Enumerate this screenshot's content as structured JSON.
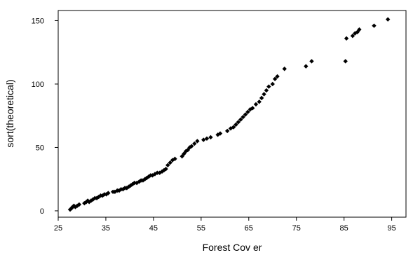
{
  "chart_data": {
    "type": "scatter",
    "title": "",
    "xlabel": "Forest Cov er",
    "ylabel": "sort(theoretical)",
    "xlim": [
      25,
      98
    ],
    "ylim": [
      -5,
      158
    ],
    "xticks": [
      25,
      35,
      45,
      55,
      65,
      75,
      85,
      95
    ],
    "yticks": [
      0,
      50,
      100,
      150
    ],
    "grid": false,
    "marker": "diamond",
    "color": "#000000",
    "series": [
      {
        "x": [
          27.5,
          27.8,
          28.0,
          28.3,
          28.6,
          29.0,
          29.4,
          30.5,
          30.9,
          31.2,
          31.5,
          31.9,
          32.3,
          32.7,
          33.1,
          33.5,
          33.9,
          34.3,
          34.7,
          35.1,
          35.5,
          36.5,
          36.9,
          37.4,
          37.8,
          38.2,
          38.6,
          39.0,
          39.4,
          39.8,
          40.2,
          40.6,
          41.0,
          41.5,
          42.0,
          42.4,
          42.8,
          43.2,
          43.6,
          44.0,
          44.4,
          44.8,
          45.3,
          45.8,
          46.3,
          46.8,
          47.2,
          47.6,
          48.0,
          48.5,
          49.0,
          49.5,
          51.0,
          51.4,
          51.8,
          52.2,
          52.6,
          53.0,
          53.6,
          54.2,
          55.5,
          56.2,
          57.0,
          58.5,
          59.0,
          60.5,
          61.2,
          61.8,
          62.3,
          62.8,
          63.3,
          63.8,
          64.3,
          64.8,
          65.3,
          65.8,
          66.5,
          67.2,
          67.7,
          68.2,
          68.7,
          69.2,
          70.0,
          70.5,
          71.0,
          72.5,
          77.0,
          78.2,
          85.3,
          85.5,
          86.8,
          87.3,
          87.8,
          88.2,
          91.3,
          94.2
        ],
        "y": [
          1,
          2,
          3,
          4,
          3,
          4,
          5,
          6,
          7,
          8,
          7,
          8,
          9,
          10,
          10,
          11,
          12,
          12,
          13,
          13,
          14,
          15,
          15,
          16,
          16,
          17,
          17,
          18,
          18,
          19,
          20,
          21,
          22,
          22,
          23,
          24,
          24,
          25,
          26,
          27,
          28,
          28,
          29,
          30,
          30,
          31,
          32,
          33,
          36,
          38,
          40,
          41,
          43,
          45,
          47,
          48,
          50,
          51,
          53,
          55,
          56,
          57,
          58,
          60,
          61,
          63,
          65,
          66,
          68,
          70,
          72,
          74,
          76,
          78,
          80,
          81,
          84,
          86,
          89,
          92,
          95,
          98,
          100,
          104,
          106,
          112,
          114,
          118,
          118,
          136,
          138,
          140,
          141,
          143,
          146,
          151
        ]
      }
    ]
  }
}
